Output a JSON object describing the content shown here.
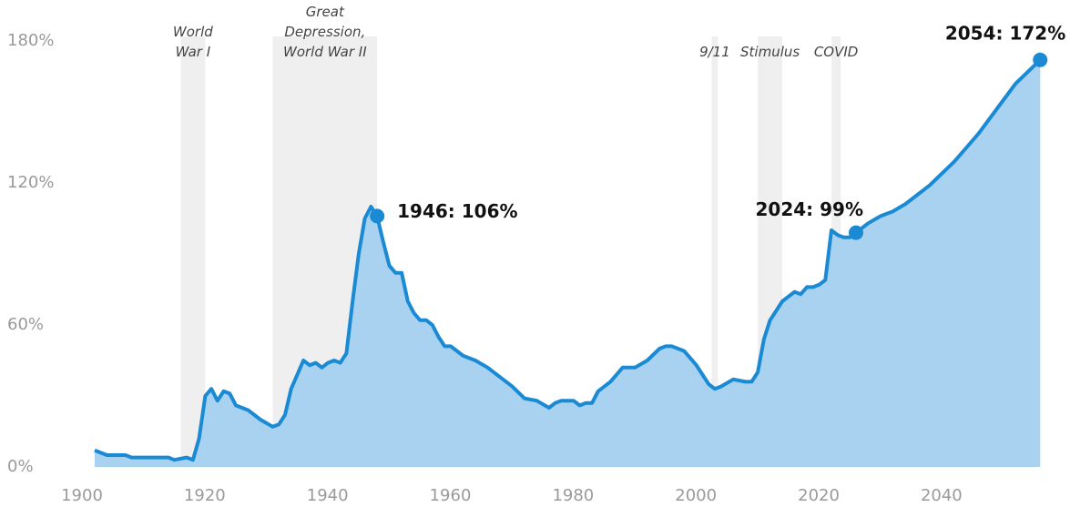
{
  "chart_data": {
    "type": "area",
    "color": "#1a8ad4",
    "fill_color": "#a9d2f0",
    "shade_color": "#efefef",
    "xlim": [
      1900,
      2055
    ],
    "ylim": [
      0,
      180
    ],
    "xticks": [
      1900,
      1920,
      1940,
      1960,
      1980,
      2000,
      2020,
      2040
    ],
    "yticks": [
      {
        "value": 0,
        "label": "0%"
      },
      {
        "value": 60,
        "label": "60%"
      },
      {
        "value": 120,
        "label": "120%"
      },
      {
        "value": 180,
        "label": "180%"
      }
    ],
    "grid": false,
    "x": [
      1900,
      1902,
      1905,
      1906,
      1912,
      1913,
      1915,
      1916,
      1917,
      1918,
      1919,
      1920,
      1921,
      1922,
      1923,
      1925,
      1927,
      1929,
      1930,
      1931,
      1932,
      1933,
      1934,
      1935,
      1936,
      1937,
      1938,
      1939,
      1940,
      1941,
      1942,
      1943,
      1944,
      1945,
      1946,
      1947,
      1948,
      1949,
      1950,
      1951,
      1952,
      1953,
      1954,
      1955,
      1956,
      1957,
      1958,
      1959,
      1960,
      1962,
      1964,
      1966,
      1968,
      1970,
      1972,
      1974,
      1975,
      1976,
      1978,
      1979,
      1980,
      1981,
      1982,
      1984,
      1986,
      1988,
      1990,
      1992,
      1993,
      1994,
      1995,
      1996,
      1998,
      2000,
      2001,
      2002,
      2004,
      2006,
      2007,
      2008,
      2009,
      2010,
      2011,
      2012,
      2013,
      2014,
      2015,
      2016,
      2017,
      2018,
      2019,
      2020,
      2021,
      2022,
      2023,
      2024,
      2026,
      2028,
      2030,
      2032,
      2034,
      2036,
      2038,
      2040,
      2042,
      2044,
      2046,
      2048,
      2050,
      2052,
      2054
    ],
    "values": [
      7,
      5,
      5,
      4,
      4,
      3,
      4,
      3,
      12,
      30,
      33,
      28,
      32,
      31,
      26,
      24,
      20,
      17,
      18,
      22,
      33,
      39,
      45,
      43,
      44,
      42,
      44,
      45,
      44,
      48,
      70,
      90,
      105,
      110,
      106,
      95,
      85,
      82,
      82,
      70,
      65,
      62,
      62,
      60,
      55,
      51,
      51,
      49,
      47,
      45,
      42,
      38,
      34,
      29,
      28,
      25,
      27,
      28,
      28,
      26,
      27,
      27,
      32,
      36,
      42,
      42,
      45,
      50,
      51,
      51,
      50,
      49,
      43,
      35,
      33,
      34,
      37,
      36,
      36,
      40,
      54,
      62,
      66,
      70,
      72,
      74,
      73,
      76,
      76,
      77,
      79,
      100,
      98,
      97,
      97,
      99,
      103,
      106,
      108,
      111,
      115,
      119,
      124,
      129,
      135,
      141,
      148,
      155,
      162,
      167,
      172
    ],
    "periods": [
      {
        "label": [
          "World",
          "War I"
        ],
        "start": 1914,
        "end": 1918
      },
      {
        "label": [
          "Great",
          "Depression,",
          "World War II"
        ],
        "start": 1929,
        "end": 1946
      },
      {
        "label": [
          "9/11"
        ],
        "start": 2000.5,
        "end": 2001.5
      },
      {
        "label": [
          "Stimulus"
        ],
        "start": 2008,
        "end": 2012
      },
      {
        "label": [
          "COVID"
        ],
        "start": 2020,
        "end": 2021.5
      }
    ],
    "highlights": [
      {
        "x": 1946,
        "value": 106,
        "label": "1946: 106%",
        "position": "right"
      },
      {
        "x": 2024,
        "value": 99,
        "label": "2024: 99%",
        "position": "above-left"
      },
      {
        "x": 2054,
        "value": 172,
        "label": "2054: 172%",
        "position": "above-far-left"
      }
    ]
  }
}
